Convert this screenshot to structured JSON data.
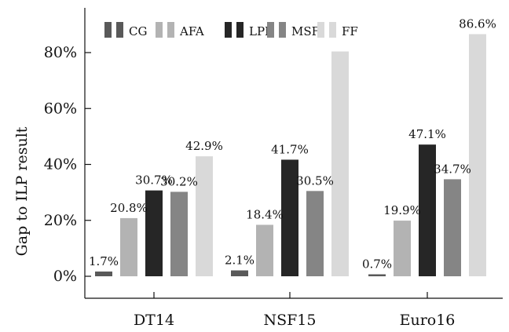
{
  "chart_data": {
    "type": "bar",
    "ylabel": "Gap to ILP result",
    "xlabel": "",
    "title": "",
    "ylim": [
      0,
      0.96
    ],
    "yticks": [
      0,
      0.2,
      0.4,
      0.6,
      0.8
    ],
    "ytick_labels": [
      "0%",
      "20%",
      "40%",
      "60%",
      "80%"
    ],
    "categories": [
      "DT14",
      "NSF15",
      "Euro16"
    ],
    "series": [
      {
        "name": "CG",
        "color": "#595959",
        "values": [
          0.017,
          0.021,
          0.007
        ],
        "labels": [
          "1.7%",
          "2.1%",
          "0.7%"
        ]
      },
      {
        "name": "AFA",
        "color": "#b3b3b3",
        "values": [
          0.208,
          0.184,
          0.199
        ],
        "labels": [
          "20.8%",
          "18.4%",
          "19.9%"
        ]
      },
      {
        "name": "LPF",
        "color": "#262626",
        "values": [
          0.307,
          0.417,
          0.471
        ],
        "labels": [
          "30.7%",
          "41.7%",
          "47.1%"
        ]
      },
      {
        "name": "MSF",
        "color": "#858585",
        "values": [
          0.302,
          0.305,
          0.347
        ],
        "labels": [
          "30.2%",
          "30.5%",
          "34.7%"
        ]
      },
      {
        "name": "FF",
        "color": "#d9d9d9",
        "values": [
          0.429,
          0.804,
          0.866
        ],
        "labels": [
          "42.9%",
          "",
          "86.6%"
        ]
      }
    ],
    "legend_position": "top-left",
    "grid": false
  }
}
